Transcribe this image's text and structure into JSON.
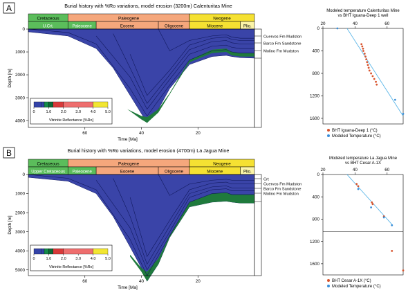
{
  "colors": {
    "burial_fill": "#3a44a8",
    "green_fill": "#1f7a3c",
    "cretaceous": "#5bbd5b",
    "paleogene": "#f5a77c",
    "neogene": "#f5e132",
    "plio": "#fbf4a8",
    "fit_line": "#5bb6e8",
    "bht_point": "#d8542e",
    "model_point": "#3a8fd9",
    "legend_blue": "#3443a8",
    "legend_green": "#168a4a",
    "legend_darkgreen": "#0c6a36",
    "legend_red": "#d83a3a",
    "legend_salmon": "#ee6e6e",
    "legend_yellow": "#f2e632"
  },
  "chart_data": [
    {
      "type": "area",
      "panel": "A",
      "title": "Burial history with %Ro variations, model erosion (3200m) Calenturitas Mine",
      "xlabel": "Time [Ma]",
      "ylabel": "Depth [m]",
      "xlim": [
        80,
        0
      ],
      "ylim": [
        0,
        4300
      ],
      "x_ticks": [
        "60",
        "40",
        "20"
      ],
      "y_ticks": [
        "0",
        "1000",
        "2000",
        "3000",
        "4000"
      ],
      "periods": [
        {
          "name": "Cretaceous",
          "start": 80,
          "end": 66
        },
        {
          "name": "Paleogene",
          "start": 66,
          "end": 23
        },
        {
          "name": "Neogene",
          "start": 23,
          "end": 0
        }
      ],
      "epochs": [
        {
          "name": "U.Crt.",
          "start": 80,
          "end": 66
        },
        {
          "name": "Paleocene",
          "start": 66,
          "end": 56
        },
        {
          "name": "Eocene",
          "start": 56,
          "end": 34
        },
        {
          "name": "Oligocene",
          "start": 34,
          "end": 23
        },
        {
          "name": "Miocene",
          "start": 23,
          "end": 5
        },
        {
          "name": "Plio.",
          "start": 5,
          "end": 0
        }
      ],
      "burial_bottom": {
        "x": [
          80,
          66,
          56,
          50,
          44,
          40,
          38,
          34,
          30,
          23,
          15,
          10,
          8,
          5,
          0
        ],
        "y": [
          120,
          300,
          850,
          1700,
          2900,
          3700,
          4100,
          3500,
          2600,
          1550,
          1200,
          1150,
          1200,
          1250,
          1270
        ]
      },
      "green_top": {
        "x": [
          45,
          40,
          38,
          34,
          30,
          23,
          15,
          10,
          8,
          5,
          0
        ],
        "y": [
          3500,
          3800,
          3850,
          3500,
          2800,
          1350,
          900,
          850,
          1000,
          1050,
          1050
        ]
      },
      "green_bottom": {
        "x": [
          45,
          40,
          38,
          34,
          30,
          23,
          15,
          10,
          8,
          5,
          0
        ],
        "y": [
          3500,
          3950,
          4100,
          3650,
          2850,
          1450,
          1050,
          1000,
          1150,
          1200,
          1200
        ]
      },
      "horizons": [
        {
          "x": [
            80,
            66,
            56,
            44,
            38,
            30,
            23,
            15,
            10,
            8,
            5,
            0
          ],
          "y": [
            0,
            150,
            650,
            2600,
            3800,
            2450,
            1350,
            950,
            900,
            1000,
            1050,
            1050
          ]
        },
        {
          "x": [
            56,
            44,
            38,
            30,
            23,
            15,
            10,
            8,
            5,
            0
          ],
          "y": [
            300,
            2100,
            3500,
            2200,
            1100,
            750,
            700,
            800,
            850,
            850
          ]
        },
        {
          "x": [
            50,
            44,
            38,
            30,
            23,
            15,
            10,
            8,
            5,
            0
          ],
          "y": [
            200,
            1700,
            3250,
            2000,
            900,
            550,
            500,
            600,
            650,
            650
          ]
        },
        {
          "x": [
            44,
            38,
            30,
            23,
            15,
            10,
            8,
            5,
            0
          ],
          "y": [
            1100,
            2900,
            1800,
            700,
            400,
            350,
            450,
            500,
            500
          ]
        },
        {
          "x": [
            34,
            30,
            23,
            15,
            10,
            8,
            5,
            0
          ],
          "y": [
            0,
            950,
            500,
            300,
            250,
            350,
            400,
            400
          ]
        }
      ],
      "formations": [
        "Cuervos Fm Mudston",
        "Barco Fm Sandstone",
        "Molino Fm Mudston"
      ],
      "legend": {
        "title": "Vitrinite Reflectance [%Ro]",
        "ticks": [
          "0",
          "1.0",
          "2.0",
          "3.0",
          "4.0",
          "5.0"
        ],
        "stops": [
          0.5,
          0.7,
          1.0,
          1.3,
          2.0,
          4.0,
          5.0
        ]
      }
    },
    {
      "type": "scatter",
      "panel": "A",
      "title": "Modeled temperature Calenturitas Mine",
      "subtitle": "vs BHT Iguana-Deep 1 well",
      "xlim": [
        20,
        70
      ],
      "ylim": [
        0,
        1700
      ],
      "x_ticks": [
        "20",
        "40",
        "60"
      ],
      "y_ticks": [
        "0",
        "400",
        "800",
        "1200",
        "1600"
      ],
      "series": [
        {
          "name": "BHT Iguana-Deep 1 (°C)",
          "x": [
            44,
            44.5,
            45,
            45.2,
            46,
            46.5,
            47,
            47.5,
            48,
            48.5,
            49,
            50,
            51,
            52,
            53,
            53.5
          ],
          "y": [
            280,
            320,
            360,
            400,
            450,
            500,
            550,
            600,
            650,
            700,
            750,
            800,
            850,
            900,
            950,
            1000
          ]
        },
        {
          "name": "Modeled Temperature (°C)",
          "x": [
            29,
            65,
            70
          ],
          "y": [
            0,
            1270,
            1520
          ]
        }
      ],
      "fit_line": {
        "x": [
          35,
          70
        ],
        "y": [
          0,
          1560
        ]
      }
    },
    {
      "type": "area",
      "panel": "B",
      "title": "Burial history with %Ro variations, model erosion (4700m) La Jagua Mine",
      "xlabel": "Time [Ma]",
      "ylabel": "Depth [m]",
      "xlim": [
        80,
        0
      ],
      "ylim": [
        0,
        5300
      ],
      "x_ticks": [
        "60",
        "40",
        "20"
      ],
      "y_ticks": [
        "0",
        "1000",
        "2000",
        "3000",
        "4000",
        "5000"
      ],
      "periods": [
        {
          "name": "Cretaceous",
          "start": 80,
          "end": 66
        },
        {
          "name": "Paleogene",
          "start": 66,
          "end": 23
        },
        {
          "name": "Neogene",
          "start": 23,
          "end": 0
        }
      ],
      "epochs": [
        {
          "name": "Upper Cretaceous",
          "start": 80,
          "end": 66
        },
        {
          "name": "Paleocene",
          "start": 66,
          "end": 56
        },
        {
          "name": "Eocene",
          "start": 56,
          "end": 34
        },
        {
          "name": "Oligocene",
          "start": 34,
          "end": 23
        },
        {
          "name": "Miocene",
          "start": 23,
          "end": 5
        },
        {
          "name": "Plio.",
          "start": 5,
          "end": 0
        }
      ],
      "burial_bottom": {
        "x": [
          80,
          66,
          56,
          50,
          44,
          40,
          38,
          34,
          30,
          23,
          15,
          10,
          8,
          5,
          0
        ],
        "y": [
          150,
          350,
          1000,
          2200,
          3800,
          4900,
          5600,
          4700,
          3300,
          1700,
          1450,
          1400,
          1450,
          1500,
          1500
        ]
      },
      "green_top": {
        "x": [
          44,
          40,
          38,
          34,
          30,
          23,
          15,
          10,
          8,
          5,
          0
        ],
        "y": [
          4200,
          4900,
          5100,
          4400,
          3200,
          1450,
          1000,
          950,
          1050,
          1050,
          1050
        ]
      },
      "green_bottom": {
        "x": [
          44,
          40,
          38,
          34,
          30,
          23,
          15,
          10,
          8,
          5,
          0
        ],
        "y": [
          4300,
          5100,
          5600,
          4700,
          3300,
          1700,
          1450,
          1400,
          1450,
          1500,
          1500
        ]
      },
      "horizons": [
        {
          "x": [
            80,
            66,
            56,
            44,
            38,
            30,
            23,
            15,
            10,
            8,
            5,
            0
          ],
          "y": [
            0,
            200,
            800,
            3400,
            5300,
            3200,
            1450,
            1000,
            950,
            1050,
            1050,
            1050
          ]
        },
        {
          "x": [
            56,
            44,
            38,
            30,
            23,
            15,
            10,
            8,
            5,
            0
          ],
          "y": [
            300,
            2800,
            5000,
            3000,
            1200,
            800,
            750,
            850,
            850,
            850
          ]
        },
        {
          "x": [
            50,
            44,
            38,
            30,
            23,
            15,
            10,
            8,
            5,
            0
          ],
          "y": [
            200,
            2200,
            4700,
            2700,
            1000,
            650,
            600,
            700,
            700,
            700
          ]
        },
        {
          "x": [
            44,
            38,
            30,
            23,
            15,
            10,
            8,
            5,
            0
          ],
          "y": [
            1200,
            4300,
            2400,
            800,
            450,
            400,
            500,
            500,
            500
          ]
        },
        {
          "x": [
            34,
            30,
            23,
            15,
            10,
            8,
            5,
            0
          ],
          "y": [
            0,
            1100,
            500,
            300,
            250,
            300,
            300,
            300
          ]
        }
      ],
      "formations": [
        "Crt",
        "Cuervos Fm Mudston",
        "Barco Fm Sandstone",
        "Molino Fm Mudston"
      ],
      "legend": {
        "title": "Vitrinite Reflectance [%Ro]",
        "ticks": [
          "0",
          "1.0",
          "2.0",
          "3.0",
          "4.0",
          "5.0"
        ],
        "stops": [
          0.5,
          0.7,
          1.0,
          1.3,
          2.0,
          4.0,
          5.0
        ]
      }
    },
    {
      "type": "scatter",
      "panel": "B",
      "title": "Modeled temperature La Jagua Mine",
      "subtitle": "vs BHT Cesar A-1X",
      "xlim": [
        20,
        70
      ],
      "ylim": [
        0,
        1800
      ],
      "x_ticks": [
        "20",
        "40",
        "60"
      ],
      "y_ticks": [
        "0",
        "400",
        "800",
        "1200",
        "1600"
      ],
      "series": [
        {
          "name": "BHT Cesar A-1X (°C)",
          "x": [
            41,
            42,
            50.5,
            51,
            58,
            63,
            70
          ],
          "y": [
            170,
            210,
            500,
            530,
            750,
            1370,
            1720
          ]
        },
        {
          "name": "Modeled Temperature (°C)",
          "x": [
            42,
            50,
            58,
            63
          ],
          "y": [
            260,
            590,
            770,
            910
          ]
        }
      ],
      "fit_line": {
        "x": [
          35,
          63.5
        ],
        "y": [
          0,
          910
        ]
      }
    }
  ]
}
